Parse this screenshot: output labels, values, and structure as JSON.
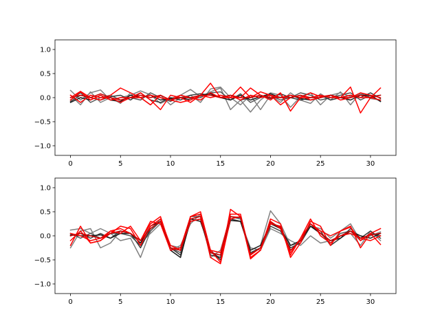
{
  "chart_data": [
    {
      "type": "line",
      "title": "",
      "xlabel": "",
      "ylabel": "",
      "xlim": [
        -1.55,
        32.55
      ],
      "ylim": [
        -1.2,
        1.2
      ],
      "xticks": [
        0,
        5,
        10,
        15,
        20,
        25,
        30
      ],
      "yticks": [
        -1.0,
        -0.5,
        0.0,
        0.5,
        1.0
      ],
      "xtick_labels": [
        "0",
        "5",
        "10",
        "15",
        "20",
        "25",
        "30"
      ],
      "ytick_labels": [
        "−1.0",
        "−0.5",
        "0.0",
        "0.5",
        "1.0"
      ],
      "grid": false,
      "x": [
        0,
        1,
        2,
        3,
        4,
        5,
        6,
        7,
        8,
        9,
        10,
        11,
        12,
        13,
        14,
        15,
        16,
        17,
        18,
        19,
        20,
        21,
        22,
        23,
        24,
        25,
        26,
        27,
        28,
        29,
        30,
        31
      ],
      "series": [
        {
          "color": "#808080",
          "values": [
            0.15,
            -0.05,
            0.1,
            0.16,
            -0.05,
            0.0,
            0.05,
            0.14,
            0.06,
            -0.12,
            -0.02,
            0.05,
            0.17,
            0.02,
            0.12,
            0.2,
            -0.25,
            -0.05,
            -0.3,
            -0.05,
            0.1,
            0.05,
            -0.2,
            0.02,
            0.1,
            -0.15,
            0.05,
            0.1,
            0.02,
            0.07,
            0.03,
            0.05
          ]
        },
        {
          "color": "#808080",
          "values": [
            0.05,
            -0.15,
            0.12,
            -0.1,
            0.0,
            -0.12,
            0.1,
            0.0,
            -0.15,
            0.05,
            -0.15,
            0.0,
            0.05,
            -0.1,
            0.18,
            0.22,
            0.0,
            -0.15,
            0.05,
            -0.25,
            0.05,
            -0.1,
            0.1,
            -0.05,
            -0.12,
            0.08,
            -0.05,
            0.12,
            -0.15,
            0.1,
            -0.02,
            -0.05
          ]
        },
        {
          "color": "#555555",
          "values": [
            -0.05,
            0.1,
            -0.1,
            0.0,
            0.05,
            -0.05,
            0.0,
            -0.05,
            0.1,
            0.0,
            -0.08,
            0.05,
            -0.02,
            0.0,
            0.1,
            0.12,
            -0.05,
            0.08,
            -0.1,
            0.0,
            0.05,
            -0.05,
            0.0,
            0.1,
            0.05,
            -0.05,
            0.0,
            0.05,
            0.1,
            -0.05,
            0.05,
            -0.08
          ]
        },
        {
          "color": "#3a3a3a",
          "values": [
            -0.08,
            0.05,
            0.0,
            -0.05,
            0.02,
            0.05,
            -0.05,
            0.1,
            -0.05,
            -0.1,
            0.0,
            -0.05,
            0.05,
            0.08,
            0.05,
            0.0,
            0.05,
            -0.05,
            0.0,
            0.05,
            -0.02,
            0.08,
            0.0,
            -0.05,
            0.0,
            0.05,
            -0.05,
            0.0,
            0.05,
            0.0,
            0.1,
            -0.02
          ]
        },
        {
          "color": "#1a1a1a",
          "values": [
            -0.1,
            0.0,
            -0.05,
            0.05,
            -0.05,
            -0.08,
            0.05,
            0.0,
            0.05,
            -0.05,
            -0.02,
            0.0,
            -0.05,
            0.05,
            0.08,
            0.0,
            -0.05,
            0.05,
            -0.05,
            0.02,
            0.08,
            0.0,
            0.05,
            -0.02,
            -0.05,
            0.0,
            0.05,
            0.0,
            -0.05,
            0.05,
            0.05,
            -0.08
          ]
        },
        {
          "color": "#ff0000",
          "values": [
            0.0,
            0.13,
            0.0,
            -0.05,
            0.05,
            0.2,
            0.1,
            0.0,
            -0.15,
            0.05,
            -0.05,
            -0.1,
            -0.05,
            0.05,
            0.3,
            0.0,
            0.0,
            0.22,
            0.0,
            0.12,
            0.05,
            -0.15,
            0.0,
            0.05,
            -0.05,
            0.0,
            0.05,
            -0.05,
            0.0,
            0.1,
            0.05,
            0.0
          ]
        },
        {
          "color": "#ff0000",
          "values": [
            -0.05,
            0.12,
            -0.05,
            0.05,
            -0.05,
            0.0,
            0.0,
            0.1,
            -0.05,
            -0.25,
            0.05,
            0.0,
            -0.1,
            0.05,
            0.0,
            0.05,
            0.0,
            0.0,
            0.2,
            0.05,
            -0.05,
            0.1,
            -0.28,
            0.0,
            0.1,
            0.02,
            0.05,
            0.0,
            0.22,
            -0.32,
            0.0,
            0.2
          ]
        },
        {
          "color": "#ff0000",
          "values": [
            0.05,
            -0.1,
            0.05,
            0.0,
            0.0,
            -0.1,
            0.0,
            0.0,
            0.05,
            0.0,
            -0.05,
            0.05,
            0.0,
            -0.05,
            0.1,
            0.0,
            0.05,
            -0.05,
            0.05,
            0.0,
            0.05,
            0.0,
            0.05,
            0.0,
            0.0,
            0.05,
            0.0,
            0.0,
            0.05,
            0.0,
            0.0,
            -0.05
          ]
        },
        {
          "color": "#cc0000",
          "values": [
            0.0,
            0.05,
            0.0,
            0.08,
            0.0,
            -0.05,
            0.0,
            0.05,
            0.0,
            0.05,
            -0.05,
            0.0,
            0.0,
            0.05,
            0.05,
            0.0,
            0.05,
            0.0,
            0.0,
            0.05,
            0.0,
            0.0,
            0.0,
            0.05,
            0.0,
            0.0,
            0.05,
            0.0,
            0.0,
            0.05,
            0.0,
            0.05
          ]
        }
      ]
    },
    {
      "type": "line",
      "title": "",
      "xlabel": "",
      "ylabel": "",
      "xlim": [
        -1.55,
        32.55
      ],
      "ylim": [
        -1.2,
        1.2
      ],
      "xticks": [
        0,
        5,
        10,
        15,
        20,
        25,
        30
      ],
      "yticks": [
        -1.0,
        -0.5,
        0.0,
        0.5,
        1.0
      ],
      "xtick_labels": [
        "0",
        "5",
        "10",
        "15",
        "20",
        "25",
        "30"
      ],
      "ytick_labels": [
        "−1.0",
        "−0.5",
        "0.0",
        "0.5",
        "1.0"
      ],
      "grid": false,
      "x": [
        0,
        1,
        2,
        3,
        4,
        5,
        6,
        7,
        8,
        9,
        10,
        11,
        12,
        13,
        14,
        15,
        16,
        17,
        18,
        19,
        20,
        21,
        22,
        23,
        24,
        25,
        26,
        27,
        28,
        29,
        30,
        31
      ],
      "series": [
        {
          "color": "#808080",
          "values": [
            0.12,
            0.15,
            0.05,
            0.15,
            0.05,
            -0.1,
            -0.05,
            -0.45,
            0.1,
            0.35,
            -0.3,
            -0.2,
            0.25,
            0.45,
            -0.45,
            -0.3,
            0.4,
            0.35,
            -0.3,
            -0.2,
            0.52,
            0.25,
            -0.2,
            -0.15,
            0.2,
            0.15,
            -0.05,
            0.1,
            0.25,
            -0.1,
            0.0,
            0.08
          ]
        },
        {
          "color": "#808080",
          "values": [
            -0.25,
            0.1,
            0.15,
            -0.25,
            -0.15,
            0.1,
            0.05,
            -0.15,
            0.05,
            0.25,
            -0.2,
            -0.25,
            0.3,
            0.35,
            -0.35,
            -0.45,
            0.35,
            0.3,
            -0.25,
            -0.3,
            0.15,
            0.05,
            -0.1,
            -0.2,
            0.0,
            -0.15,
            -0.1,
            0.0,
            0.05,
            -0.2,
            0.1,
            -0.1
          ]
        },
        {
          "color": "#555555",
          "values": [
            0.05,
            -0.05,
            0.05,
            -0.05,
            0.05,
            0.05,
            0.0,
            -0.2,
            0.1,
            0.3,
            -0.25,
            -0.35,
            0.4,
            0.4,
            -0.35,
            -0.4,
            0.4,
            0.35,
            -0.35,
            -0.25,
            0.3,
            0.15,
            -0.3,
            -0.1,
            0.2,
            0.05,
            -0.15,
            0.05,
            0.1,
            -0.1,
            0.05,
            0.0
          ]
        },
        {
          "color": "#3a3a3a",
          "values": [
            0.0,
            0.05,
            -0.05,
            0.05,
            -0.05,
            0.1,
            0.05,
            -0.25,
            0.15,
            0.3,
            -0.25,
            -0.4,
            0.3,
            0.35,
            -0.4,
            -0.45,
            0.35,
            0.3,
            -0.35,
            -0.25,
            0.2,
            0.1,
            -0.25,
            -0.15,
            0.2,
            0.1,
            -0.2,
            -0.05,
            0.15,
            -0.05,
            0.1,
            -0.05
          ]
        },
        {
          "color": "#1a1a1a",
          "values": [
            0.02,
            0.0,
            0.0,
            0.02,
            -0.05,
            0.05,
            0.05,
            -0.15,
            0.2,
            0.3,
            -0.3,
            -0.45,
            0.35,
            0.3,
            -0.3,
            -0.5,
            0.32,
            0.3,
            -0.3,
            -0.2,
            0.25,
            0.15,
            -0.2,
            -0.1,
            0.2,
            0.05,
            -0.1,
            -0.05,
            0.1,
            0.0,
            -0.05,
            0.05
          ]
        },
        {
          "color": "#ff0000",
          "values": [
            -0.2,
            0.2,
            -0.15,
            -0.1,
            0.1,
            0.15,
            0.05,
            -0.1,
            0.3,
            0.25,
            -0.3,
            -0.25,
            0.4,
            0.5,
            -0.3,
            -0.55,
            0.55,
            0.4,
            -0.48,
            -0.3,
            0.35,
            0.25,
            -0.45,
            -0.15,
            0.3,
            0.2,
            -0.2,
            0.1,
            0.2,
            -0.25,
            0.05,
            0.15
          ]
        },
        {
          "color": "#ff0000",
          "values": [
            0.05,
            0.0,
            -0.1,
            -0.05,
            0.1,
            0.05,
            0.2,
            -0.1,
            0.25,
            0.4,
            -0.25,
            -0.3,
            0.3,
            0.35,
            -0.3,
            -0.35,
            0.45,
            0.45,
            -0.4,
            -0.25,
            0.3,
            0.15,
            -0.35,
            -0.05,
            0.35,
            0.0,
            -0.15,
            0.0,
            0.05,
            -0.05,
            -0.1,
            0.0
          ]
        },
        {
          "color": "#ff0000",
          "values": [
            -0.1,
            0.1,
            -0.15,
            -0.1,
            0.05,
            0.2,
            0.15,
            -0.2,
            0.2,
            0.35,
            -0.2,
            -0.3,
            0.4,
            0.45,
            -0.45,
            -0.58,
            0.35,
            0.4,
            -0.45,
            -0.3,
            0.25,
            0.2,
            -0.4,
            -0.05,
            0.25,
            0.1,
            0.0,
            0.1,
            0.18,
            -0.1,
            0.05,
            -0.18
          ]
        },
        {
          "color": "#cc0000",
          "values": [
            0.0,
            0.05,
            0.0,
            -0.05,
            0.05,
            0.1,
            0.05,
            -0.1,
            0.15,
            0.3,
            -0.25,
            -0.3,
            0.35,
            0.4,
            -0.35,
            -0.4,
            0.4,
            0.38,
            -0.38,
            -0.25,
            0.28,
            0.18,
            -0.3,
            -0.1,
            0.25,
            0.05,
            -0.1,
            0.0,
            0.1,
            -0.05,
            0.02,
            0.05
          ]
        }
      ]
    }
  ]
}
